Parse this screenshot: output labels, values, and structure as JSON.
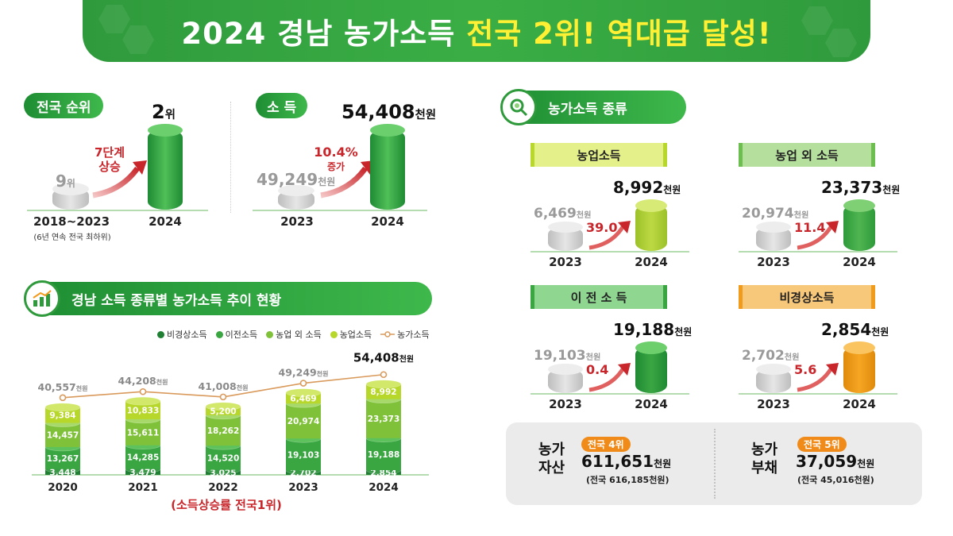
{
  "banner": {
    "title_main": "2024 경남 농가소득 ",
    "title_highlight": "전국 2위! 역대급 달성!"
  },
  "rank": {
    "label": "전국 순위",
    "prev_value": "9",
    "prev_unit": "위",
    "curr_value": "2",
    "curr_unit": "위",
    "change_line1": "7단계",
    "change_line2": "상승",
    "prev_period": "2018~2023",
    "prev_note": "(6년 연속 전국 최하위)",
    "curr_period": "2024"
  },
  "income": {
    "label": "소 득",
    "prev_value": "49,249",
    "prev_unit": "천원",
    "curr_value": "54,408",
    "curr_unit": "천원",
    "change_line1": "10.4%",
    "change_line2": "증가",
    "prev_year": "2023",
    "curr_year": "2024"
  },
  "types": {
    "label": "농가소득 종류",
    "items": [
      {
        "name": "농업소득",
        "prev": "6,469",
        "curr": "8,992",
        "unit": "천원",
        "rate": "39.0",
        "prev_year": "2023",
        "curr_year": "2024"
      },
      {
        "name": "농업 외 소득",
        "prev": "20,974",
        "curr": "23,373",
        "unit": "천원",
        "rate": "11.4",
        "prev_year": "2023",
        "curr_year": "2024"
      },
      {
        "name": "이 전 소 득",
        "prev": "19,103",
        "curr": "19,188",
        "unit": "천원",
        "rate": "0.4",
        "prev_year": "2023",
        "curr_year": "2024"
      },
      {
        "name": "비경상소득",
        "prev": "2,702",
        "curr": "2,854",
        "unit": "천원",
        "rate": "5.6",
        "prev_year": "2023",
        "curr_year": "2024"
      }
    ]
  },
  "trend": {
    "label": "경남 소득 종류별 농가소득 추이 현황",
    "note": "(소득상승률 전국1위)"
  },
  "summary": {
    "assets_label_1": "농가",
    "assets_label_2": "자산",
    "assets_tag": "전국 4위",
    "assets_value": "611,651",
    "assets_unit": "천원",
    "assets_national": "(전국 616,185천원)",
    "debt_label_1": "농가",
    "debt_label_2": "부채",
    "debt_tag": "전국 5위",
    "debt_value": "37,059",
    "debt_unit": "천원",
    "debt_national": "(전국 45,016천원)"
  },
  "colors": {
    "nonrecurring": "#1f7f32",
    "transfer": "#3aa642",
    "nonfarm": "#7fc23a",
    "farm": "#b7d72b",
    "line": "#d99a5c",
    "gray": "#c8c8c8",
    "orange": "#f29a1c",
    "red_arrow": "#c8262b"
  },
  "chart_data": {
    "type": "bar",
    "stacked": true,
    "categories": [
      "2020",
      "2021",
      "2022",
      "2023",
      "2024"
    ],
    "series": [
      {
        "name": "비경상소득",
        "values": [
          3448,
          3479,
          3025,
          2702,
          2854
        ]
      },
      {
        "name": "이전소득",
        "values": [
          13267,
          14285,
          14520,
          19103,
          19188
        ]
      },
      {
        "name": "농업 외 소득",
        "values": [
          14457,
          15611,
          18262,
          20974,
          23373
        ]
      },
      {
        "name": "농업소득",
        "values": [
          9384,
          10833,
          5200,
          6469,
          8992
        ]
      }
    ],
    "value_labels": [
      [
        "3,448",
        "3,479",
        "3,025",
        "2,702",
        "2,854"
      ],
      [
        "13,267",
        "14,285",
        "14,520",
        "19,103",
        "19,188"
      ],
      [
        "14,457",
        "15,611",
        "18,262",
        "20,974",
        "23,373"
      ],
      [
        "9,384",
        "10,833",
        "5,200",
        "6,469",
        "8,992"
      ]
    ],
    "line_series": {
      "name": "농가소득",
      "values": [
        40557,
        44208,
        41008,
        49249,
        54408
      ],
      "labels": [
        "40,557",
        "44,208",
        "41,008",
        "49,249",
        "54,408"
      ],
      "unit": "천원"
    },
    "legend_position": "top-right"
  }
}
